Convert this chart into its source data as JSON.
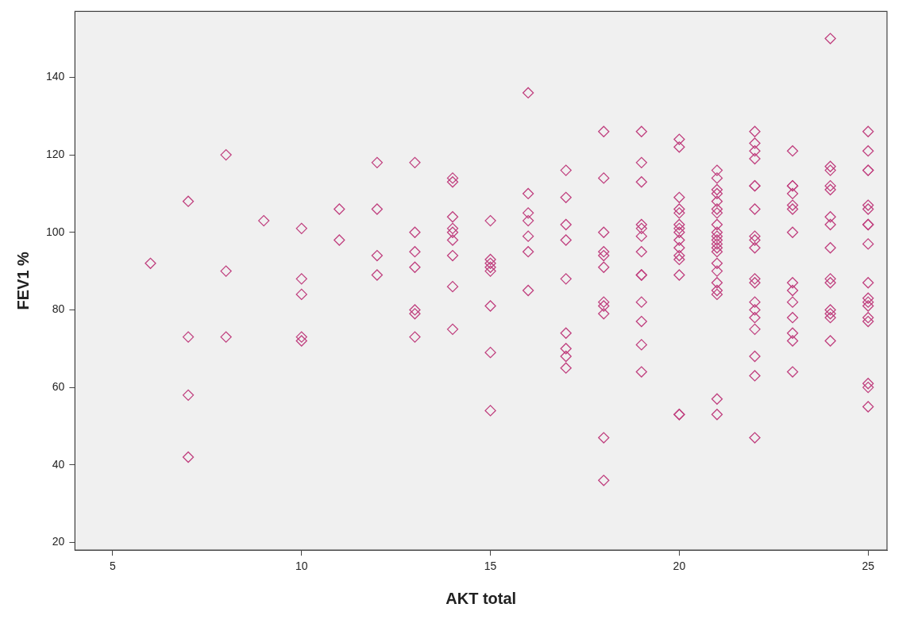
{
  "chart_data": {
    "type": "scatter",
    "xlabel": "AKT total",
    "ylabel": "FEV1 %",
    "xlim": [
      4,
      25.5
    ],
    "ylim": [
      18,
      157
    ],
    "xticks": [
      5,
      10,
      15,
      20,
      25
    ],
    "yticks": [
      20,
      40,
      60,
      80,
      100,
      120,
      140
    ],
    "grid": false,
    "legend": false,
    "marker": "diamond",
    "series": [
      {
        "color": "#c0407f",
        "x": [
          6,
          7,
          7,
          7,
          7,
          8,
          8,
          8,
          9,
          10,
          10,
          10,
          10,
          10,
          11,
          11,
          12,
          12,
          12,
          12,
          13,
          13,
          13,
          13,
          13,
          13,
          13,
          14,
          14,
          14,
          14,
          14,
          14,
          14,
          14,
          14,
          15,
          15,
          15,
          15,
          15,
          15,
          15,
          15,
          16,
          16,
          16,
          16,
          16,
          16,
          16,
          17,
          17,
          17,
          17,
          17,
          17,
          17,
          17,
          17,
          18,
          18,
          18,
          18,
          18,
          18,
          18,
          18,
          18,
          18,
          18,
          19,
          19,
          19,
          19,
          19,
          19,
          19,
          19,
          19,
          19,
          19,
          19,
          19,
          20,
          20,
          20,
          20,
          20,
          20,
          20,
          20,
          20,
          20,
          20,
          20,
          20,
          20,
          20,
          21,
          21,
          21,
          21,
          21,
          21,
          21,
          21,
          21,
          21,
          21,
          21,
          21,
          21,
          21,
          21,
          21,
          21,
          21,
          21,
          21,
          22,
          22,
          22,
          22,
          22,
          22,
          22,
          22,
          22,
          22,
          22,
          22,
          22,
          22,
          22,
          22,
          22,
          22,
          22,
          23,
          23,
          23,
          23,
          23,
          23,
          23,
          23,
          23,
          23,
          23,
          23,
          23,
          23,
          24,
          24,
          24,
          24,
          24,
          24,
          24,
          24,
          24,
          24,
          24,
          24,
          24,
          24,
          25,
          25,
          25,
          25,
          25,
          25,
          25,
          25,
          25,
          25,
          25,
          25,
          25,
          25,
          25,
          25,
          25,
          25
        ],
        "values": [
          92,
          108,
          73,
          58,
          42,
          120,
          90,
          73,
          103,
          101,
          88,
          84,
          73,
          72,
          106,
          98,
          118,
          106,
          94,
          89,
          118,
          100,
          95,
          91,
          80,
          79,
          73,
          114,
          113,
          104,
          101,
          100,
          98,
          94,
          86,
          75,
          103,
          93,
          92,
          91,
          90,
          81,
          69,
          54,
          136,
          110,
          105,
          103,
          99,
          95,
          85,
          116,
          109,
          102,
          98,
          88,
          74,
          70,
          68,
          65,
          126,
          114,
          100,
          95,
          94,
          91,
          82,
          81,
          79,
          47,
          36,
          126,
          118,
          113,
          102,
          101,
          99,
          95,
          89,
          89,
          82,
          77,
          71,
          64,
          124,
          122,
          109,
          106,
          105,
          102,
          101,
          100,
          98,
          96,
          94,
          93,
          89,
          53,
          53,
          116,
          114,
          111,
          110,
          108,
          106,
          105,
          102,
          100,
          99,
          98,
          97,
          96,
          95,
          92,
          90,
          87,
          85,
          84,
          57,
          53,
          126,
          123,
          121,
          119,
          112,
          112,
          106,
          99,
          98,
          96,
          88,
          87,
          82,
          80,
          78,
          75,
          68,
          63,
          47,
          121,
          112,
          112,
          110,
          107,
          106,
          100,
          87,
          85,
          82,
          78,
          74,
          72,
          64,
          150,
          117,
          116,
          112,
          111,
          104,
          102,
          96,
          88,
          87,
          80,
          79,
          78,
          72,
          126,
          121,
          116,
          116,
          107,
          106,
          102,
          102,
          97,
          87,
          83,
          82,
          81,
          78,
          77,
          61,
          60,
          55
        ]
      }
    ]
  }
}
